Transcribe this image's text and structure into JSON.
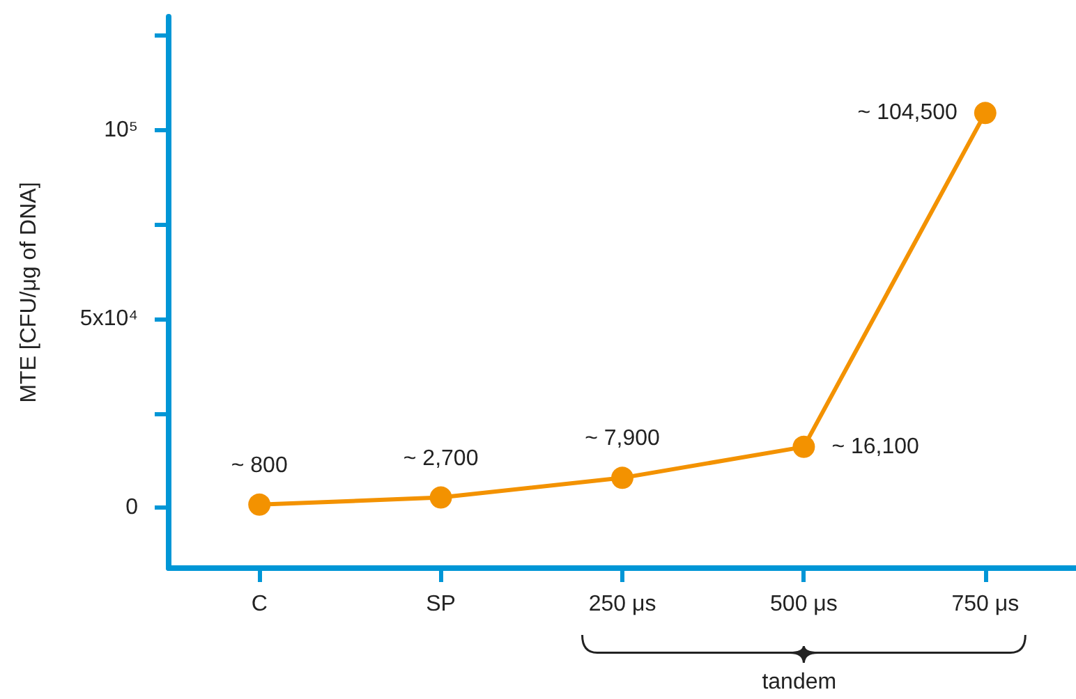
{
  "chart_data": {
    "type": "line",
    "ylabel": "MTE [CFU/μg of DNA]",
    "categories": [
      "C",
      "SP",
      "250 μs",
      "500 μs",
      "750 μs"
    ],
    "series": [
      {
        "color": "#f39200",
        "values": [
          800,
          2700,
          7900,
          16100,
          104500
        ],
        "value_labels": [
          "~ 800",
          "~ 2,700",
          "~ 7,900",
          "~ 16,100",
          "~ 104,500"
        ]
      }
    ],
    "ylim": [
      -16000,
      130000
    ],
    "yticks": [
      0,
      {
        "value": 25000,
        "label": null
      },
      {
        "value": 50000,
        "label": "5x10⁴"
      },
      {
        "value": 75000,
        "label": null
      },
      {
        "value": 100000,
        "label": "10⁵"
      },
      {
        "value": 125000,
        "label": null
      }
    ],
    "annotations": [
      "tandem"
    ],
    "marker": "circle",
    "line_style": "solid",
    "grid": false
  }
}
